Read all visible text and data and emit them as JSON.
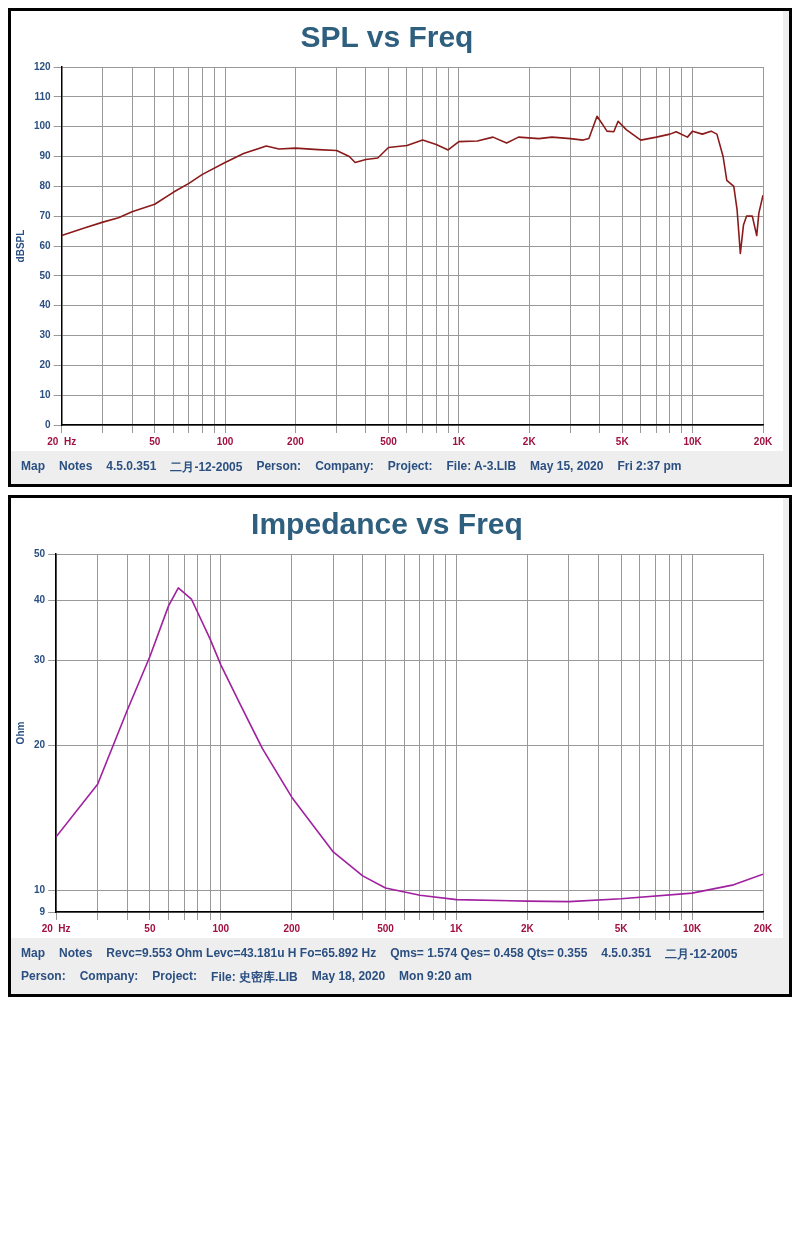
{
  "chart_data": [
    {
      "type": "line",
      "title": "SPL vs Freq",
      "ylabel": "dBSPL",
      "log": "x",
      "grid": true,
      "legend": false,
      "marker": "none",
      "line_style": "solid",
      "xlim": [
        20,
        20000
      ],
      "xticks": [
        {
          "value": 20,
          "label": "20  Hz"
        },
        {
          "value": 30,
          "label": null
        },
        {
          "value": 40,
          "label": null
        },
        50,
        {
          "value": 60,
          "label": null
        },
        {
          "value": 70,
          "label": null
        },
        {
          "value": 80,
          "label": null
        },
        {
          "value": 90,
          "label": null
        },
        100,
        200,
        {
          "value": 300,
          "label": null
        },
        {
          "value": 400,
          "label": null
        },
        500,
        {
          "value": 600,
          "label": null
        },
        {
          "value": 700,
          "label": null
        },
        {
          "value": 800,
          "label": null
        },
        {
          "value": 900,
          "label": null
        },
        {
          "value": 1000,
          "label": "1K"
        },
        {
          "value": 2000,
          "label": "2K"
        },
        {
          "value": 3000,
          "label": null
        },
        {
          "value": 4000,
          "label": null
        },
        {
          "value": 5000,
          "label": "5K"
        },
        {
          "value": 6000,
          "label": null
        },
        {
          "value": 7000,
          "label": null
        },
        {
          "value": 8000,
          "label": null
        },
        {
          "value": 9000,
          "label": null
        },
        {
          "value": 10000,
          "label": "10K"
        },
        {
          "value": 20000,
          "label": "20K"
        }
      ],
      "ylim": [
        0,
        120
      ],
      "yticks": [
        0,
        10,
        20,
        30,
        40,
        50,
        60,
        70,
        80,
        90,
        100,
        110,
        120
      ],
      "x": [
        20,
        25,
        30,
        35,
        40,
        50,
        60,
        70,
        80,
        100,
        120,
        150,
        170,
        200,
        250,
        300,
        340,
        360,
        400,
        450,
        500,
        600,
        700,
        800,
        900,
        1000,
        1200,
        1400,
        1600,
        1800,
        2200,
        2500,
        3000,
        3400,
        3600,
        3900,
        4100,
        4300,
        4600,
        4800,
        5200,
        6000,
        7000,
        8000,
        8500,
        9500,
        10000,
        11000,
        12000,
        12700,
        13500,
        14000,
        15000,
        15500,
        16000,
        16500,
        17000,
        18000,
        18800,
        19200,
        20000
      ],
      "series": [
        {
          "color": "#8b1a1a",
          "values": [
            63.5,
            66,
            68,
            69.5,
            71.5,
            74,
            78,
            81,
            84,
            88,
            91,
            93.5,
            92.5,
            92.8,
            92.3,
            92,
            90,
            88,
            89,
            89.5,
            93,
            93.7,
            95.5,
            94,
            92.2,
            95,
            95.2,
            96.5,
            94.5,
            96.5,
            96,
            96.5,
            96,
            95.5,
            96,
            103.5,
            101,
            98.5,
            98.3,
            101.8,
            99,
            95.5,
            96.5,
            97.5,
            98.3,
            96.5,
            98.5,
            97.5,
            98.5,
            97.5,
            90,
            82,
            80,
            72,
            57.5,
            67,
            70,
            70,
            63.5,
            71,
            77
          ]
        }
      ],
      "annotations": [
        "Map",
        "Notes",
        "4.5.0.351",
        "二月-12-2005",
        "Person:",
        "Company:",
        "Project:",
        "File: A-3.LIB",
        "May 15, 2020",
        "Fri  2:37 pm"
      ]
    },
    {
      "type": "line",
      "title": "Impedance vs Freq",
      "ylabel": "Ohm",
      "log": "xy",
      "grid": true,
      "legend": false,
      "marker": "none",
      "line_style": "solid",
      "xlim": [
        20,
        20000
      ],
      "xticks": [
        {
          "value": 20,
          "label": "20  Hz"
        },
        {
          "value": 30,
          "label": null
        },
        {
          "value": 40,
          "label": null
        },
        50,
        {
          "value": 60,
          "label": null
        },
        {
          "value": 70,
          "label": null
        },
        {
          "value": 80,
          "label": null
        },
        {
          "value": 90,
          "label": null
        },
        100,
        200,
        {
          "value": 300,
          "label": null
        },
        {
          "value": 400,
          "label": null
        },
        500,
        {
          "value": 600,
          "label": null
        },
        {
          "value": 700,
          "label": null
        },
        {
          "value": 800,
          "label": null
        },
        {
          "value": 900,
          "label": null
        },
        {
          "value": 1000,
          "label": "1K"
        },
        {
          "value": 2000,
          "label": "2K"
        },
        {
          "value": 3000,
          "label": null
        },
        {
          "value": 4000,
          "label": null
        },
        {
          "value": 5000,
          "label": "5K"
        },
        {
          "value": 6000,
          "label": null
        },
        {
          "value": 7000,
          "label": null
        },
        {
          "value": 8000,
          "label": null
        },
        {
          "value": 9000,
          "label": null
        },
        {
          "value": 10000,
          "label": "10K"
        },
        {
          "value": 20000,
          "label": "20K"
        }
      ],
      "ylim": [
        9,
        50
      ],
      "yticks": [
        9,
        10,
        20,
        30,
        40,
        50
      ],
      "x": [
        20,
        30,
        40,
        50,
        60,
        66,
        75,
        90,
        100,
        120,
        150,
        200,
        300,
        400,
        500,
        700,
        1000,
        2000,
        3000,
        5000,
        10000,
        15000,
        20000
      ],
      "series": [
        {
          "color": "#a020a0",
          "values": [
            12.9,
            16.6,
            23.6,
            30.6,
            39,
            42.5,
            40.3,
            33.3,
            29.4,
            24.5,
            19.7,
            15.6,
            12,
            10.7,
            10.1,
            9.75,
            9.55,
            9.48,
            9.46,
            9.59,
            9.85,
            10.25,
            10.79
          ]
        }
      ],
      "annotations": [
        "Map",
        "Notes",
        "Revc=9.553 Ohm  Levc=43.181u H  Fo=65.892 Hz",
        "Qms= 1.574  Qes= 0.458  Qts= 0.355",
        "4.5.0.351",
        "二月-12-2005",
        "Person:",
        "Company:",
        "Project:",
        "File: 史密库.LIB",
        "May 18, 2020",
        "Mon  9:20 am"
      ]
    }
  ]
}
